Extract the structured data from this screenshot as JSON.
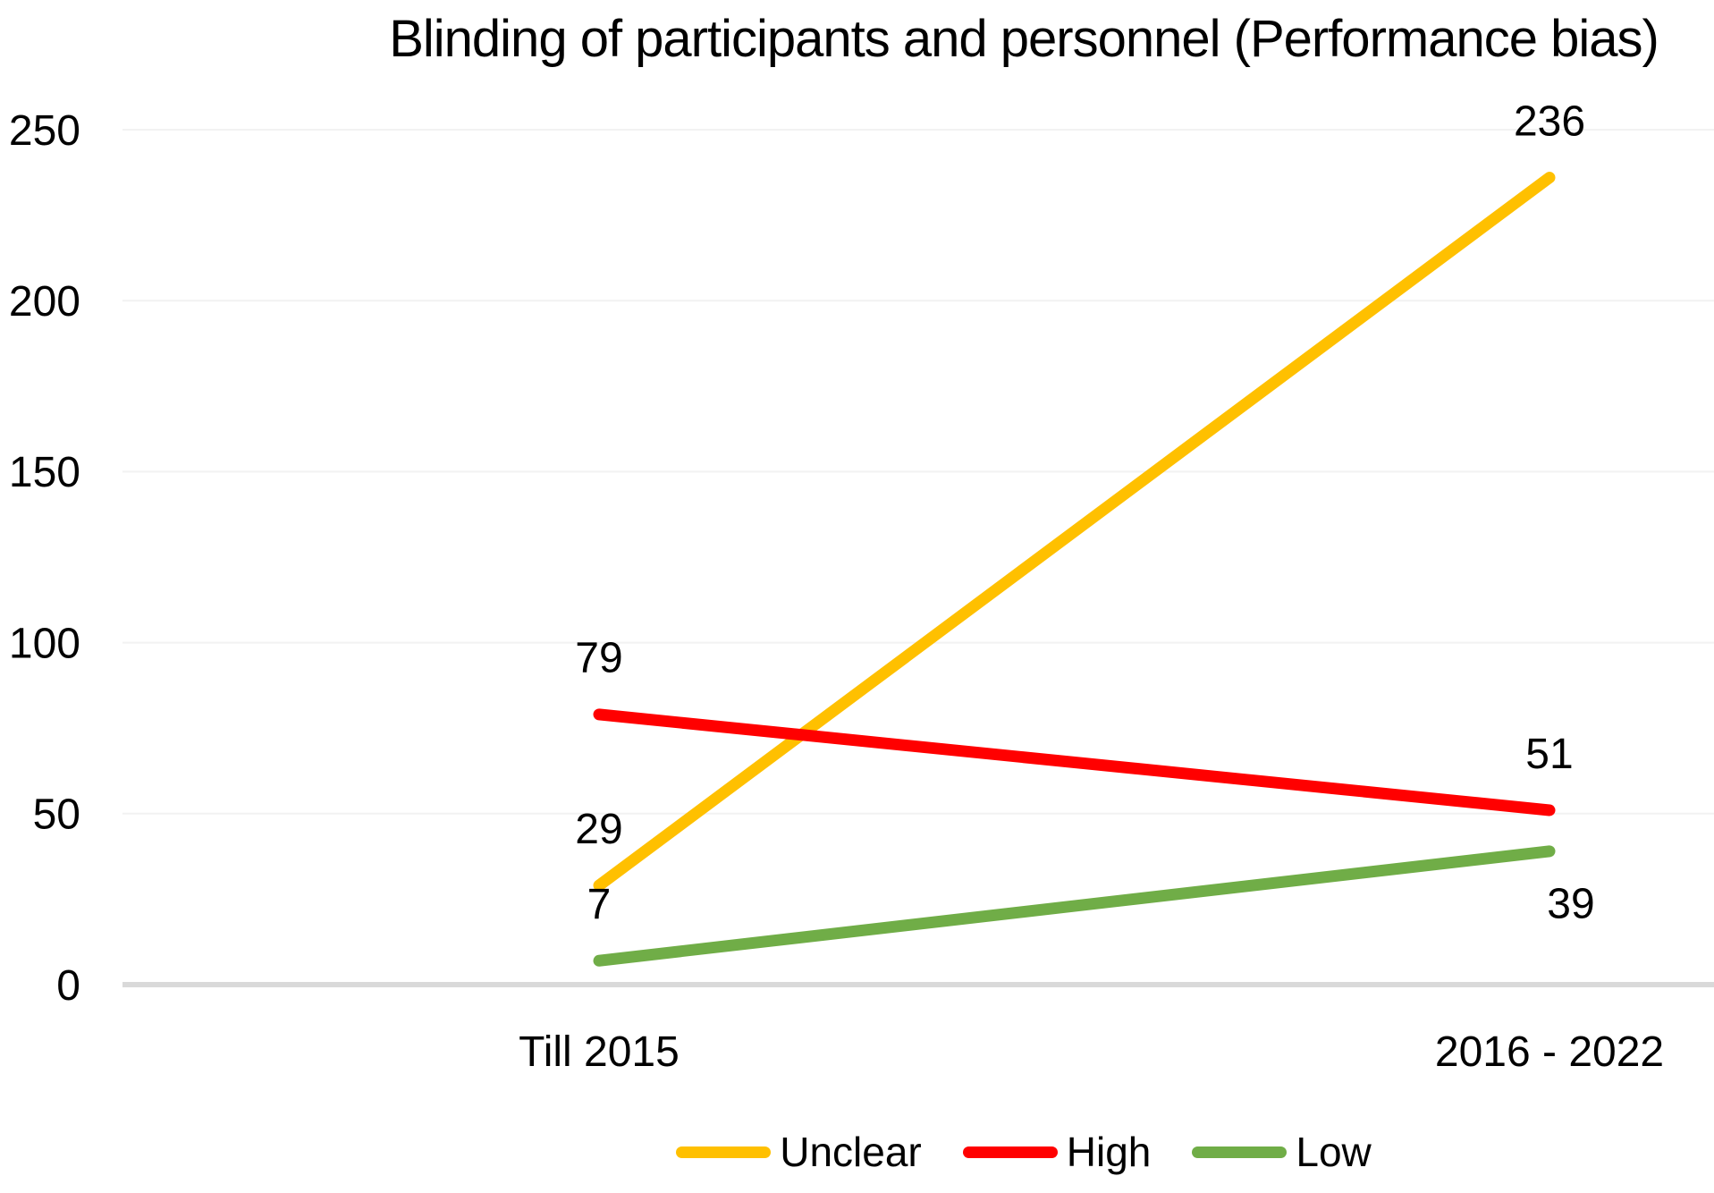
{
  "chart_data": {
    "type": "line",
    "title": "Blinding of participants and personnel (Performance bias)",
    "categories": [
      "Till 2015",
      "2016 - 2022"
    ],
    "series": [
      {
        "name": "Unclear",
        "color": "#FFC000",
        "values": [
          29,
          236
        ],
        "data_label_positions": [
          "above",
          "above"
        ]
      },
      {
        "name": "High",
        "color": "#FF0000",
        "values": [
          79,
          51
        ],
        "data_label_positions": [
          "above",
          "above"
        ]
      },
      {
        "name": "Low",
        "color": "#70AD47",
        "values": [
          7,
          39
        ],
        "data_label_positions": [
          "above",
          "below"
        ]
      }
    ],
    "xlabel": "",
    "ylabel": "",
    "ylim": [
      0,
      250
    ],
    "y_ticks": [
      0,
      50,
      100,
      150,
      200,
      250
    ],
    "grid": true,
    "data_labels": true,
    "legend_position": "bottom",
    "colors": {
      "grid_line": "#F2F2F2",
      "axis_line": "#D9D9D9",
      "text": "#000000",
      "background": "#FFFFFF"
    }
  }
}
